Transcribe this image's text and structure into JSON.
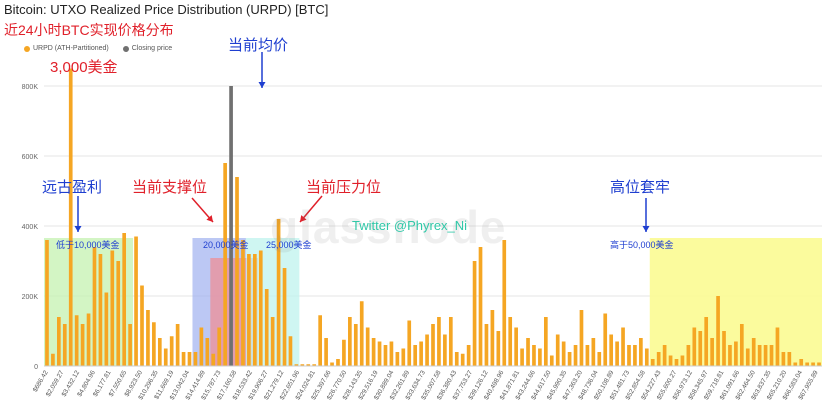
{
  "header": {
    "title": "Bitcoin: UTXO Realized Price Distribution (URPD) [BTC]",
    "subtitle": "近24小时BTC实现价格分布"
  },
  "legend": {
    "urpd_label": "URPD (ATH-Partitioned)",
    "closing_label": "Closing price"
  },
  "annotations": {
    "peak": "3,000美金",
    "current_avg": "当前均价",
    "ancient_profit": "远古盈利",
    "support": "当前支撑位",
    "resistance": "当前压力位",
    "high_trap": "高位套牢",
    "below_10k": "低于10,000美金",
    "level_20k": "20,000美金",
    "level_25k": "25,000美金",
    "above_50k": "高于50,000美金"
  },
  "watermark": "glassnode",
  "twitter": "Twitter @Phyrex_Ni",
  "colors": {
    "bar": "#f5a623",
    "closing_bar": "#707070",
    "green_zone": "#c4f1b0",
    "blue_zone": "#9fb0f0",
    "red_zone": "#ef8f97",
    "cyan_zone": "#bff3ee",
    "yellow_zone": "#fafa8c"
  },
  "chart_data": {
    "type": "bar",
    "y_tick_labels": [
      "0",
      "200K",
      "400K",
      "600K",
      "800K"
    ],
    "ylim": [
      0,
      880000
    ],
    "grid": true,
    "legend_position": "top-left",
    "x_tick_labels": [
      "$686.42",
      "$2,059.27",
      "$3,432.12",
      "$4,804.96",
      "$6,177.81",
      "$7,550.65",
      "$8,923.50",
      "$10,296.35",
      "$11,669.19",
      "$13,042.04",
      "$14,414.89",
      "$15,787.73",
      "$17,160.58",
      "$18,533.42",
      "$19,906.27",
      "$21,279.12",
      "$22,651.96",
      "$24,024.81",
      "$25,397.66",
      "$26,770.50",
      "$28,143.35",
      "$29,516.19",
      "$30,889.04",
      "$32,261.89",
      "$33,634.73",
      "$35,007.58",
      "$36,380.43",
      "$37,753.27",
      "$39,126.12",
      "$40,498.96",
      "$41,871.81",
      "$43,244.66",
      "$44,617.50",
      "$45,990.35",
      "$47,363.20",
      "$48,736.04",
      "$50,108.89",
      "$51,481.73",
      "$52,854.58",
      "$54,227.43",
      "$55,600.27",
      "$56,973.12",
      "$58,345.97",
      "$59,718.81",
      "$61,091.66",
      "$62,464.50",
      "$63,837.35",
      "$65,210.20",
      "$66,583.04",
      "$67,955.89"
    ],
    "values": [
      360000,
      35000,
      140000,
      120000,
      850000,
      145000,
      120000,
      150000,
      340000,
      320000,
      210000,
      330000,
      300000,
      380000,
      120000,
      370000,
      230000,
      160000,
      125000,
      80000,
      50000,
      85000,
      120000,
      40000,
      40000,
      40000,
      110000,
      80000,
      35000,
      110000,
      580000,
      800000,
      540000,
      360000,
      320000,
      320000,
      330000,
      220000,
      140000,
      420000,
      280000,
      85000,
      5000,
      5000,
      5000,
      5000,
      145000,
      80000,
      10000,
      20000,
      75000,
      140000,
      120000,
      185000,
      110000,
      80000,
      70000,
      60000,
      70000,
      40000,
      50000,
      130000,
      60000,
      70000,
      90000,
      120000,
      140000,
      90000,
      140000,
      40000,
      35000,
      60000,
      300000,
      340000,
      120000,
      160000,
      100000,
      360000,
      140000,
      110000,
      50000,
      80000,
      60000,
      50000,
      140000,
      30000,
      90000,
      70000,
      40000,
      60000,
      160000,
      60000,
      80000,
      40000,
      150000,
      90000,
      70000,
      110000,
      60000,
      60000,
      80000,
      50000,
      20000,
      40000,
      60000,
      30000,
      20000,
      30000,
      60000,
      110000,
      100000,
      140000,
      80000,
      200000,
      100000,
      60000,
      70000,
      120000,
      50000,
      80000,
      60000,
      60000,
      60000,
      110000,
      40000,
      40000,
      10000,
      20000,
      10000,
      10000,
      10000
    ],
    "closing_index": 31
  }
}
